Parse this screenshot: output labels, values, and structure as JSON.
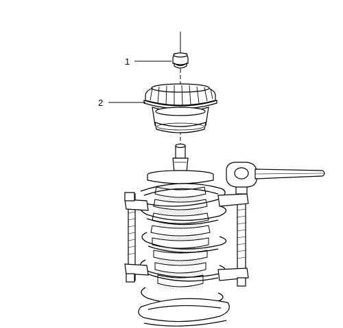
{
  "callouts": [
    {
      "number": "1"
    },
    {
      "number": "2"
    }
  ],
  "colors": {
    "ink": "#000000",
    "paper": "#ffffff",
    "shade": "#e6e6e6"
  }
}
